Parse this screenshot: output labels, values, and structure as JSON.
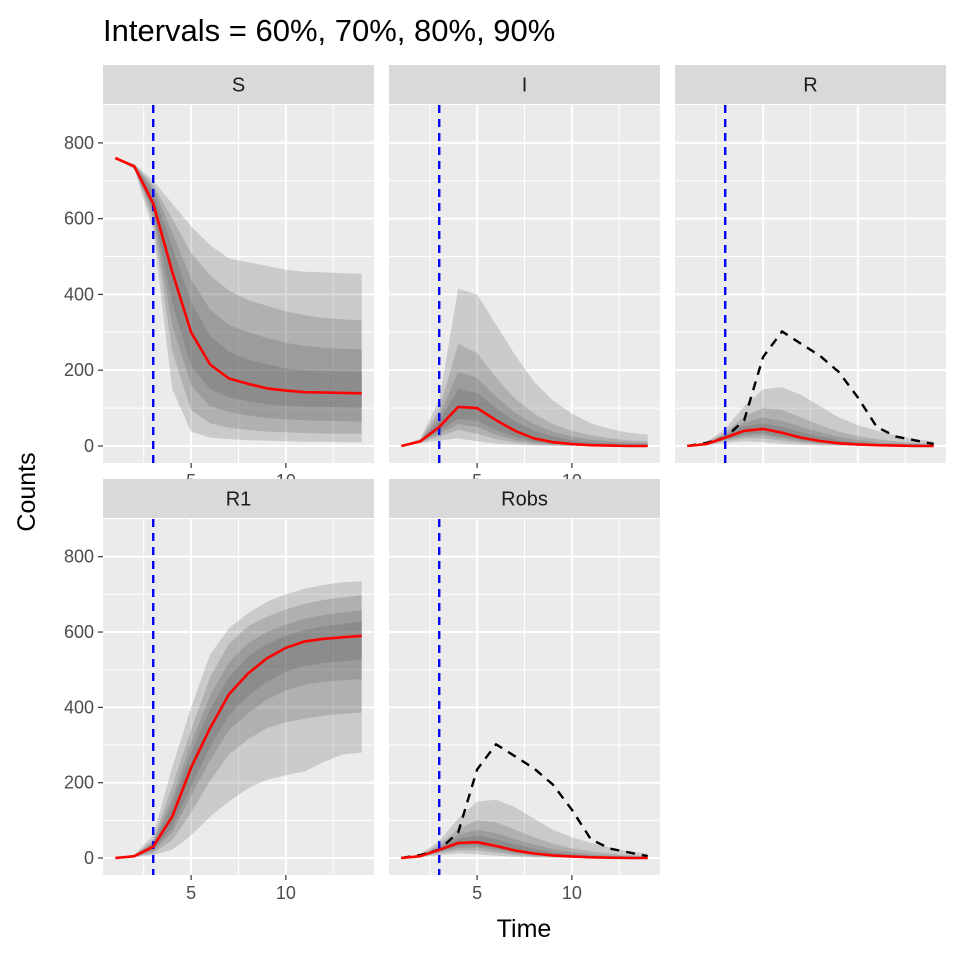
{
  "chart_data": {
    "type": "area",
    "title": "Intervals = 60%, 70%, 80%, 90%",
    "xlabel": "Time",
    "ylabel": "Counts",
    "xlim": [
      0.35,
      14.65
    ],
    "ylim": [
      -45,
      900
    ],
    "x_ticks": [
      5,
      10
    ],
    "y_ticks": [
      0,
      200,
      400,
      600,
      800
    ],
    "vline_x": 3,
    "grid": true,
    "colors": {
      "panel_bg": "#ebebeb",
      "strip_bg": "#d9d9d9",
      "grid": "#ffffff",
      "median": "#ff0000",
      "vline": "#0000ff",
      "observed": "#000000",
      "band_fill": "#555555"
    },
    "time": [
      1,
      2,
      3,
      4,
      5,
      6,
      7,
      8,
      9,
      10,
      11,
      12,
      13,
      14
    ],
    "panels": [
      {
        "name": "S",
        "median": [
          760,
          738,
          640,
          460,
          300,
          215,
          178,
          164,
          152,
          146,
          142,
          141,
          140,
          139
        ],
        "bands": [
          {
            "level": "90%",
            "lower": [
              760,
              730,
              570,
              150,
              38,
              22,
              18,
              15,
              14,
              12,
              11,
              11,
              10,
              10
            ],
            "upper": [
              760,
              745,
              700,
              640,
              580,
              530,
              495,
              485,
              475,
              465,
              460,
              458,
              456,
              455
            ]
          },
          {
            "level": "80%",
            "lower": [
              760,
              733,
              595,
              250,
              95,
              60,
              48,
              42,
              38,
              36,
              34,
              33,
              32,
              32
            ],
            "upper": [
              760,
              743,
              690,
              600,
              510,
              450,
              410,
              385,
              370,
              355,
              345,
              338,
              334,
              332
            ]
          },
          {
            "level": "70%",
            "lower": [
              760,
              735,
              610,
              320,
              160,
              105,
              90,
              80,
              74,
              70,
              68,
              66,
              65,
              64
            ],
            "upper": [
              760,
              742,
              680,
              565,
              440,
              360,
              320,
              300,
              285,
              272,
              264,
              259,
              256,
              255
            ]
          },
          {
            "level": "60%",
            "lower": [
              760,
              736,
              622,
              380,
              210,
              150,
              128,
              118,
              110,
              106,
              104,
              103,
              102,
              101
            ],
            "upper": [
              760,
              741,
              670,
              525,
              380,
              290,
              248,
              228,
              215,
              205,
              200,
              198,
              197,
              196
            ]
          }
        ]
      },
      {
        "name": "I",
        "median": [
          0,
          12,
          50,
          103,
          100,
          68,
          40,
          20,
          10,
          5,
          2,
          1,
          0,
          0
        ],
        "bands": [
          {
            "level": "90%",
            "lower": [
              0,
              7,
              14,
              20,
              12,
              6,
              3,
              1,
              0,
              0,
              0,
              0,
              0,
              0
            ],
            "upper": [
              0,
              20,
              120,
              415,
              400,
              320,
              240,
              170,
              120,
              85,
              60,
              45,
              35,
              30
            ]
          },
          {
            "level": "80%",
            "lower": [
              0,
              9,
              25,
              42,
              32,
              18,
              9,
              4,
              2,
              1,
              0,
              0,
              0,
              0
            ],
            "upper": [
              0,
              17,
              95,
              270,
              245,
              180,
              125,
              85,
              58,
              40,
              28,
              20,
              15,
              12
            ]
          },
          {
            "level": "70%",
            "lower": [
              0,
              10,
              33,
              58,
              50,
              30,
              16,
              8,
              4,
              2,
              1,
              0,
              0,
              0
            ],
            "upper": [
              0,
              15,
              78,
              195,
              180,
              130,
              88,
              58,
              38,
              25,
              17,
              12,
              9,
              7
            ]
          },
          {
            "level": "60%",
            "lower": [
              0,
              11,
              40,
              72,
              66,
              42,
              24,
              12,
              6,
              3,
              1,
              1,
              0,
              0
            ],
            "upper": [
              0,
              14,
              65,
              150,
              140,
              100,
              65,
              40,
              25,
              15,
              10,
              7,
              5,
              4
            ]
          }
        ]
      },
      {
        "name": "R",
        "median": [
          0,
          5,
          22,
          40,
          45,
          35,
          22,
          13,
          7,
          4,
          2,
          1,
          0,
          0
        ],
        "observed": [
          0,
          8,
          22,
          68,
          235,
          302,
          270,
          238,
          195,
          128,
          50,
          25,
          15,
          5
        ],
        "bands": [
          {
            "level": "90%",
            "lower": [
              0,
              2,
              8,
              12,
              10,
              6,
              3,
              1,
              0,
              0,
              0,
              0,
              0,
              0
            ],
            "upper": [
              0,
              10,
              45,
              105,
              150,
              155,
              135,
              105,
              75,
              55,
              40,
              28,
              18,
              12
            ]
          },
          {
            "level": "80%",
            "lower": [
              0,
              3,
              13,
              20,
              20,
              14,
              8,
              4,
              2,
              1,
              0,
              0,
              0,
              0
            ],
            "upper": [
              0,
              8,
              36,
              78,
              100,
              95,
              75,
              55,
              38,
              26,
              18,
              12,
              8,
              5
            ]
          },
          {
            "level": "70%",
            "lower": [
              0,
              4,
              16,
              26,
              28,
              20,
              12,
              7,
              4,
              2,
              1,
              0,
              0,
              0
            ],
            "upper": [
              0,
              7,
              31,
              62,
              75,
              66,
              50,
              36,
              24,
              16,
              10,
              7,
              5,
              3
            ]
          },
          {
            "level": "60%",
            "lower": [
              0,
              4,
              18,
              32,
              34,
              26,
              16,
              9,
              5,
              3,
              1,
              1,
              0,
              0
            ],
            "upper": [
              0,
              6,
              27,
              52,
              60,
              50,
              36,
              25,
              15,
              10,
              6,
              4,
              3,
              2
            ]
          }
        ]
      },
      {
        "name": "R1",
        "median": [
          0,
          5,
          30,
          110,
          240,
          345,
          435,
          490,
          530,
          558,
          575,
          582,
          586,
          590
        ],
        "bands": [
          {
            "level": "90%",
            "lower": [
              0,
              2,
              8,
              22,
              60,
              110,
              150,
              185,
              208,
              220,
              230,
              255,
              275,
              280
            ],
            "upper": [
              0,
              9,
              60,
              240,
              400,
              540,
              610,
              650,
              680,
              700,
              715,
              725,
              732,
              735
            ]
          },
          {
            "level": "80%",
            "lower": [
              0,
              3,
              13,
              48,
              120,
              205,
              275,
              315,
              345,
              360,
              370,
              378,
              383,
              386
            ],
            "upper": [
              0,
              8,
              48,
              190,
              340,
              480,
              570,
              615,
              640,
              660,
              675,
              685,
              692,
              698
            ]
          },
          {
            "level": "70%",
            "lower": [
              0,
              4,
              18,
              68,
              165,
              260,
              340,
              385,
              420,
              445,
              460,
              468,
              472,
              475
            ],
            "upper": [
              0,
              7,
              42,
              160,
              305,
              430,
              520,
              570,
              600,
              620,
              635,
              645,
              652,
              658
            ]
          },
          {
            "level": "60%",
            "lower": [
              0,
              4,
              22,
              82,
              190,
              295,
              380,
              430,
              468,
              495,
              510,
              518,
              522,
              526
            ],
            "upper": [
              0,
              6,
              38,
              140,
              280,
              395,
              480,
              535,
              568,
              590,
              605,
              615,
              622,
              628
            ]
          }
        ]
      },
      {
        "name": "Robs",
        "median": [
          0,
          5,
          22,
          40,
          42,
          32,
          20,
          12,
          7,
          4,
          2,
          1,
          0,
          0
        ],
        "observed": [
          0,
          8,
          22,
          68,
          235,
          302,
          270,
          238,
          195,
          128,
          50,
          25,
          15,
          5
        ],
        "bands": [
          {
            "level": "90%",
            "lower": [
              0,
              2,
              8,
              12,
              10,
              6,
              3,
              1,
              0,
              0,
              0,
              0,
              0,
              0
            ],
            "upper": [
              0,
              10,
              45,
              105,
              150,
              155,
              135,
              105,
              75,
              55,
              40,
              28,
              18,
              12
            ]
          },
          {
            "level": "80%",
            "lower": [
              0,
              3,
              13,
              20,
              20,
              14,
              8,
              4,
              2,
              1,
              0,
              0,
              0,
              0
            ],
            "upper": [
              0,
              8,
              36,
              78,
              100,
              95,
              75,
              55,
              38,
              26,
              18,
              12,
              8,
              5
            ]
          },
          {
            "level": "70%",
            "lower": [
              0,
              4,
              16,
              26,
              28,
              20,
              12,
              7,
              4,
              2,
              1,
              0,
              0,
              0
            ],
            "upper": [
              0,
              7,
              31,
              62,
              75,
              66,
              50,
              36,
              24,
              16,
              10,
              7,
              5,
              3
            ]
          },
          {
            "level": "60%",
            "lower": [
              0,
              4,
              18,
              32,
              34,
              26,
              16,
              9,
              5,
              3,
              1,
              1,
              0,
              0
            ],
            "upper": [
              0,
              6,
              27,
              52,
              60,
              50,
              36,
              25,
              15,
              10,
              6,
              4,
              3,
              2
            ]
          }
        ]
      }
    ]
  }
}
